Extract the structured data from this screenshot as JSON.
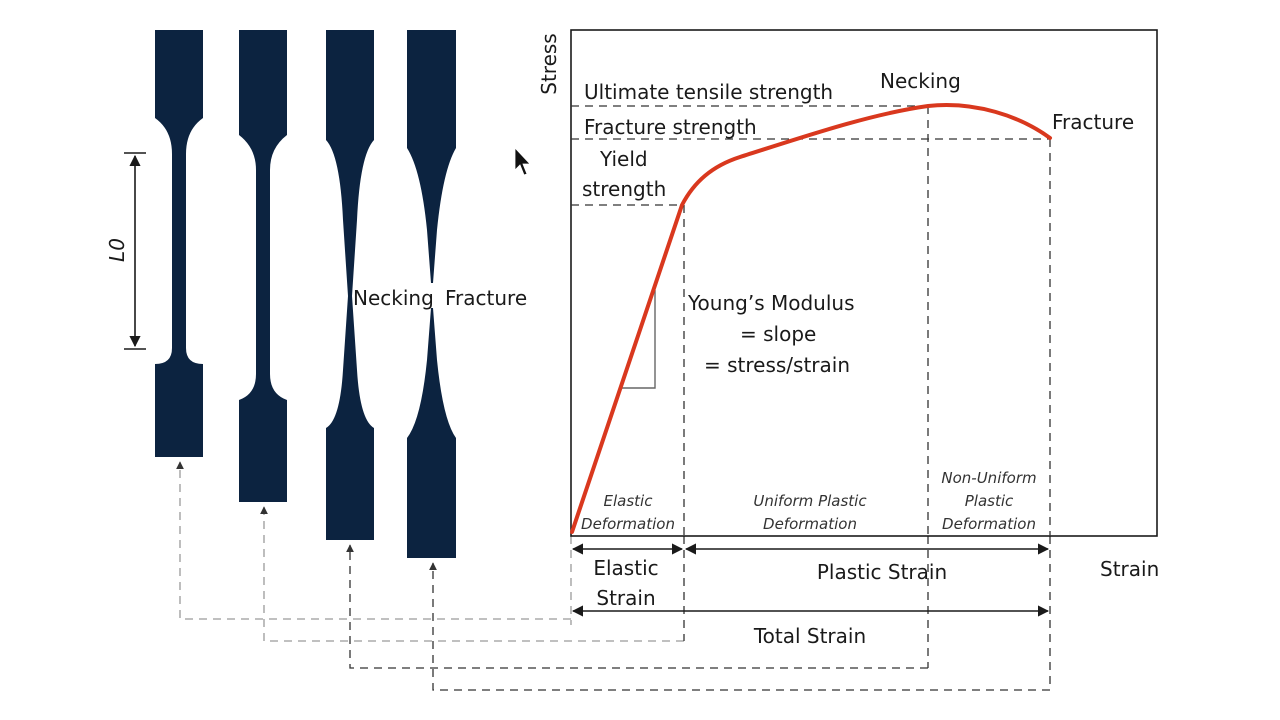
{
  "colors": {
    "specimen": "#0c2340",
    "curve": "#d9381e",
    "axis": "#1a1a1a",
    "guide": "#333333"
  },
  "icons": [
    "mouse-cursor-icon"
  ],
  "specimens": {
    "gauge_length_label": "L0",
    "necking_label": "Necking",
    "fracture_label": "Fracture"
  },
  "chart": {
    "ylabel": "Stress",
    "xlabel": "Strain",
    "ultimate_tensile_strength": "Ultimate tensile strength",
    "fracture_strength": "Fracture strength",
    "yield_strength_line1": "Yield",
    "yield_strength_line2": "strength",
    "necking": "Necking",
    "fracture": "Fracture",
    "youngs_line1": "Young’s Modulus",
    "youngs_line2": "= slope",
    "youngs_line3": "= stress/strain",
    "regions": {
      "elastic_line1": "Elastic",
      "elastic_line2": "Deformation",
      "uniform_line1": "Uniform Plastic",
      "uniform_line2": "Deformation",
      "nonuniform_line1": "Non-Uniform",
      "nonuniform_line2": "Plastic",
      "nonuniform_line3": "Deformation"
    },
    "strain_ranges": {
      "elastic_line1": "Elastic",
      "elastic_line2": "Strain",
      "plastic": "Plastic Strain",
      "total": "Total Strain"
    }
  }
}
